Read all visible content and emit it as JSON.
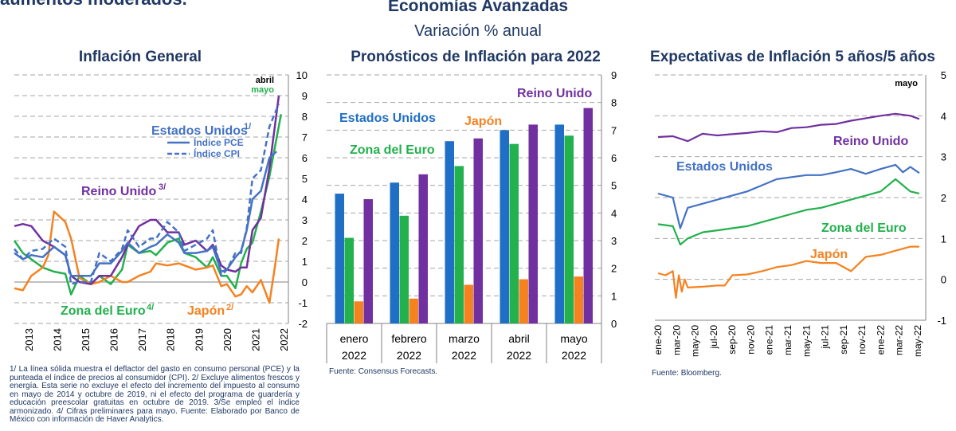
{
  "header": {
    "cut_title": "aumentos moderados.",
    "title": "Economías Avanzadas",
    "subtitle": "Variación % anual"
  },
  "colors": {
    "us": "#4472c4",
    "us_dark": "#1f6fc6",
    "euro": "#22b14c",
    "uk": "#7030a0",
    "japan": "#f58220",
    "navy": "#1f3864",
    "grid": "#a6a6a6"
  },
  "notes": {
    "panel1": "1/ La línea sólida muestra el deflactor del gasto en consumo personal (PCE) y la punteada el índice de precios al consumidor (CPI). 2/ Excluye alimentos frescos y energía. Esta serie no excluye el efecto del incremento del impuesto al consumo en mayo de 2014 y octubre de 2019, ni el efecto del programa de guardería y educación preescolar gratuitas en octubre de 2019. 3/Se empleó el índice armonizado. 4/ Cifras preliminares para mayo. Fuente: Elaborado por Banco de México con información de Haver Analytics.",
    "panel2": "Fuente: Consensus Forecasts.",
    "panel3": "Fuente: Bloomberg."
  },
  "chart_data": [
    {
      "type": "line",
      "title": "Inflación General",
      "ylim": [
        -2,
        10
      ],
      "yticks": [
        "-2",
        "-1",
        "0",
        "1",
        "2",
        "3",
        "4",
        "5",
        "6",
        "7",
        "8",
        "9",
        "10"
      ],
      "xticks": [
        "2013",
        "2014",
        "2015",
        "2016",
        "2017",
        "2018",
        "2019",
        "2020",
        "2021",
        "2022"
      ],
      "x_range": [
        2013,
        2022.5
      ],
      "annotations": {
        "abril": "abril",
        "mayo": "mayo"
      },
      "labels": {
        "us": "Estados Unidos",
        "us_sup": "1/",
        "pce": "Índice PCE",
        "cpi": "Índice CPI",
        "uk": "Reino Unido",
        "uk_sup": "3/",
        "euro": "Zona del Euro",
        "euro_sup": "4/",
        "japan": "Japón",
        "japan_sup": "2/"
      },
      "series": [
        {
          "key": "us_pce",
          "x": [
            2013.0,
            2013.3,
            2013.6,
            2014.0,
            2014.4,
            2014.8,
            2015.0,
            2015.3,
            2015.7,
            2016.0,
            2016.4,
            2016.8,
            2017.0,
            2017.4,
            2017.8,
            2018.0,
            2018.4,
            2018.8,
            2019.0,
            2019.4,
            2019.8,
            2020.0,
            2020.3,
            2020.5,
            2020.8,
            2021.0,
            2021.2,
            2021.4,
            2021.7,
            2022.0,
            2022.25
          ],
          "y": [
            1.4,
            1.1,
            1.3,
            1.2,
            1.7,
            1.3,
            0.3,
            0.3,
            0.3,
            0.9,
            0.9,
            1.5,
            1.9,
            1.4,
            1.7,
            1.8,
            2.3,
            1.9,
            1.4,
            1.4,
            1.5,
            1.7,
            0.5,
            0.6,
            1.2,
            1.5,
            2.5,
            4.0,
            4.4,
            6.0,
            6.3
          ]
        },
        {
          "key": "us_cpi",
          "x": [
            2013.0,
            2013.3,
            2013.6,
            2014.0,
            2014.4,
            2014.8,
            2015.0,
            2015.3,
            2015.7,
            2016.0,
            2016.4,
            2016.8,
            2017.0,
            2017.4,
            2017.8,
            2018.0,
            2018.4,
            2018.8,
            2019.0,
            2019.4,
            2019.8,
            2020.0,
            2020.3,
            2020.5,
            2020.8,
            2021.0,
            2021.2,
            2021.4,
            2021.7,
            2022.0,
            2022.33
          ],
          "y": [
            1.6,
            1.1,
            1.5,
            1.6,
            2.1,
            1.7,
            -0.1,
            0.0,
            0.0,
            1.4,
            1.0,
            1.6,
            2.5,
            1.7,
            2.1,
            2.1,
            2.9,
            2.4,
            1.5,
            1.8,
            2.1,
            2.5,
            0.3,
            0.6,
            1.4,
            1.4,
            2.6,
            5.0,
            5.4,
            7.5,
            8.6
          ]
        },
        {
          "key": "uk",
          "x": [
            2013.0,
            2013.3,
            2013.6,
            2014.0,
            2014.4,
            2014.8,
            2015.0,
            2015.3,
            2015.7,
            2016.0,
            2016.4,
            2016.8,
            2017.0,
            2017.4,
            2017.8,
            2018.0,
            2018.4,
            2018.8,
            2019.0,
            2019.4,
            2019.8,
            2020.0,
            2020.3,
            2020.5,
            2020.8,
            2021.0,
            2021.2,
            2021.4,
            2021.7,
            2022.0,
            2022.33
          ],
          "y": [
            2.7,
            2.8,
            2.7,
            2.0,
            1.7,
            1.3,
            0.3,
            0.0,
            -0.1,
            0.3,
            0.3,
            1.2,
            1.8,
            2.7,
            3.0,
            3.0,
            2.4,
            2.4,
            1.8,
            2.0,
            1.5,
            1.8,
            0.8,
            0.6,
            0.5,
            0.7,
            0.7,
            2.5,
            3.1,
            5.5,
            9.0
          ]
        },
        {
          "key": "euro",
          "x": [
            2013.0,
            2013.3,
            2013.6,
            2014.0,
            2014.4,
            2014.8,
            2015.0,
            2015.3,
            2015.7,
            2016.0,
            2016.4,
            2016.8,
            2017.0,
            2017.4,
            2017.8,
            2018.0,
            2018.4,
            2018.8,
            2019.0,
            2019.4,
            2019.8,
            2020.0,
            2020.3,
            2020.5,
            2020.8,
            2021.0,
            2021.2,
            2021.4,
            2021.7,
            2022.0,
            2022.41
          ],
          "y": [
            2.0,
            1.4,
            1.1,
            0.7,
            0.5,
            0.4,
            -0.6,
            0.3,
            -0.1,
            0.3,
            -0.1,
            0.6,
            1.8,
            1.4,
            1.5,
            1.3,
            1.9,
            2.1,
            1.4,
            1.2,
            0.7,
            1.2,
            0.3,
            0.3,
            -0.3,
            0.9,
            1.6,
            1.9,
            3.4,
            5.1,
            8.1
          ]
        },
        {
          "key": "japan",
          "x": [
            2013.0,
            2013.3,
            2013.6,
            2014.0,
            2014.2,
            2014.4,
            2014.8,
            2015.0,
            2015.3,
            2015.7,
            2016.0,
            2016.4,
            2016.8,
            2017.0,
            2017.4,
            2017.8,
            2018.0,
            2018.4,
            2018.8,
            2019.0,
            2019.4,
            2019.8,
            2020.0,
            2020.3,
            2020.5,
            2020.8,
            2021.0,
            2021.2,
            2021.4,
            2021.7,
            2022.0,
            2022.2,
            2022.33
          ],
          "y": [
            -0.3,
            -0.4,
            0.3,
            0.7,
            1.3,
            3.4,
            2.9,
            2.1,
            0.2,
            -0.1,
            0.0,
            0.3,
            0.0,
            0.0,
            0.3,
            0.5,
            0.9,
            0.8,
            0.9,
            0.8,
            0.6,
            0.7,
            0.8,
            -0.2,
            -0.1,
            -0.7,
            -0.6,
            -0.2,
            -0.5,
            0.1,
            -1.0,
            0.8,
            2.1
          ]
        }
      ]
    },
    {
      "type": "bar",
      "title": "Pronósticos de Inflación para 2022",
      "ylim": [
        0,
        9
      ],
      "yticks": [
        "0",
        "1",
        "2",
        "3",
        "4",
        "5",
        "6",
        "7",
        "8",
        "9"
      ],
      "categories": [
        [
          "enero",
          "2022"
        ],
        [
          "febrero",
          "2022"
        ],
        [
          "marzo",
          "2022"
        ],
        [
          "abril",
          "2022"
        ],
        [
          "mayo",
          "2022"
        ]
      ],
      "labels": {
        "us": "Estados Unidos",
        "euro": "Zona del Euro",
        "japan": "Japón",
        "uk": "Reino Unido"
      },
      "series": [
        {
          "key": "us",
          "values": [
            4.7,
            5.1,
            6.6,
            7.0,
            7.2
          ]
        },
        {
          "key": "euro",
          "values": [
            3.1,
            3.9,
            5.7,
            6.5,
            6.8
          ]
        },
        {
          "key": "japan",
          "values": [
            0.8,
            0.9,
            1.4,
            1.6,
            1.7
          ]
        },
        {
          "key": "uk",
          "values": [
            4.5,
            5.4,
            6.7,
            7.2,
            7.8
          ]
        }
      ]
    },
    {
      "type": "line",
      "title": "Expectativas de Inflación 5 años/5 años",
      "ylim": [
        -1,
        5
      ],
      "yticks": [
        "-1",
        "0",
        "1",
        "2",
        "3",
        "4",
        "5"
      ],
      "xticks": [
        "ene-20",
        "mar-20",
        "may-20",
        "jul-20",
        "sep-20",
        "nov-20",
        "ene-21",
        "mar-21",
        "may-21",
        "jul-21",
        "sep-21",
        "nov-21",
        "ene-22",
        "mar-22",
        "may-22"
      ],
      "annotations": {
        "mayo": "mayo"
      },
      "labels": {
        "uk": "Reino Unido",
        "us": "Estados Unidos",
        "euro": "Zona del Euro",
        "japan": "Japón"
      },
      "series": [
        {
          "key": "uk",
          "x": [
            0,
            1,
            2,
            3,
            4,
            5,
            6,
            7,
            8,
            9,
            10,
            11,
            12,
            13,
            14,
            15,
            16,
            17,
            17.6
          ],
          "y": [
            3.48,
            3.5,
            3.38,
            3.56,
            3.52,
            3.55,
            3.58,
            3.62,
            3.6,
            3.7,
            3.72,
            3.78,
            3.8,
            3.88,
            3.94,
            4.0,
            4.05,
            4.0,
            3.92
          ]
        },
        {
          "key": "us",
          "x": [
            0,
            1,
            1.5,
            2,
            3,
            4,
            5,
            6,
            7,
            8,
            9,
            10,
            11,
            12,
            13,
            14,
            15,
            16,
            16.5,
            17,
            17.6
          ],
          "y": [
            2.1,
            2.0,
            1.25,
            1.75,
            1.85,
            1.95,
            2.05,
            2.15,
            2.3,
            2.45,
            2.5,
            2.55,
            2.55,
            2.62,
            2.7,
            2.58,
            2.7,
            2.8,
            2.62,
            2.75,
            2.6
          ]
        },
        {
          "key": "euro",
          "x": [
            0,
            1,
            1.5,
            2,
            3,
            4,
            5,
            6,
            7,
            8,
            9,
            10,
            11,
            12,
            13,
            14,
            15,
            16,
            16.5,
            17,
            17.6
          ],
          "y": [
            1.35,
            1.3,
            0.85,
            1.0,
            1.15,
            1.2,
            1.25,
            1.3,
            1.4,
            1.5,
            1.6,
            1.7,
            1.75,
            1.85,
            1.95,
            2.05,
            2.15,
            2.45,
            2.3,
            2.15,
            2.1
          ]
        },
        {
          "key": "japan",
          "x": [
            0,
            0.5,
            1,
            1.2,
            1.4,
            1.6,
            1.8,
            2,
            3,
            4,
            4.5,
            5,
            6,
            7,
            8,
            9,
            10,
            11,
            12,
            13,
            14,
            15,
            16,
            17,
            17.6
          ],
          "y": [
            0.15,
            0.1,
            0.2,
            -0.45,
            0.1,
            -0.3,
            0.0,
            -0.2,
            -0.18,
            -0.15,
            -0.15,
            0.1,
            0.12,
            0.2,
            0.3,
            0.35,
            0.45,
            0.4,
            0.4,
            0.2,
            0.55,
            0.6,
            0.7,
            0.8,
            0.8
          ]
        }
      ]
    }
  ]
}
